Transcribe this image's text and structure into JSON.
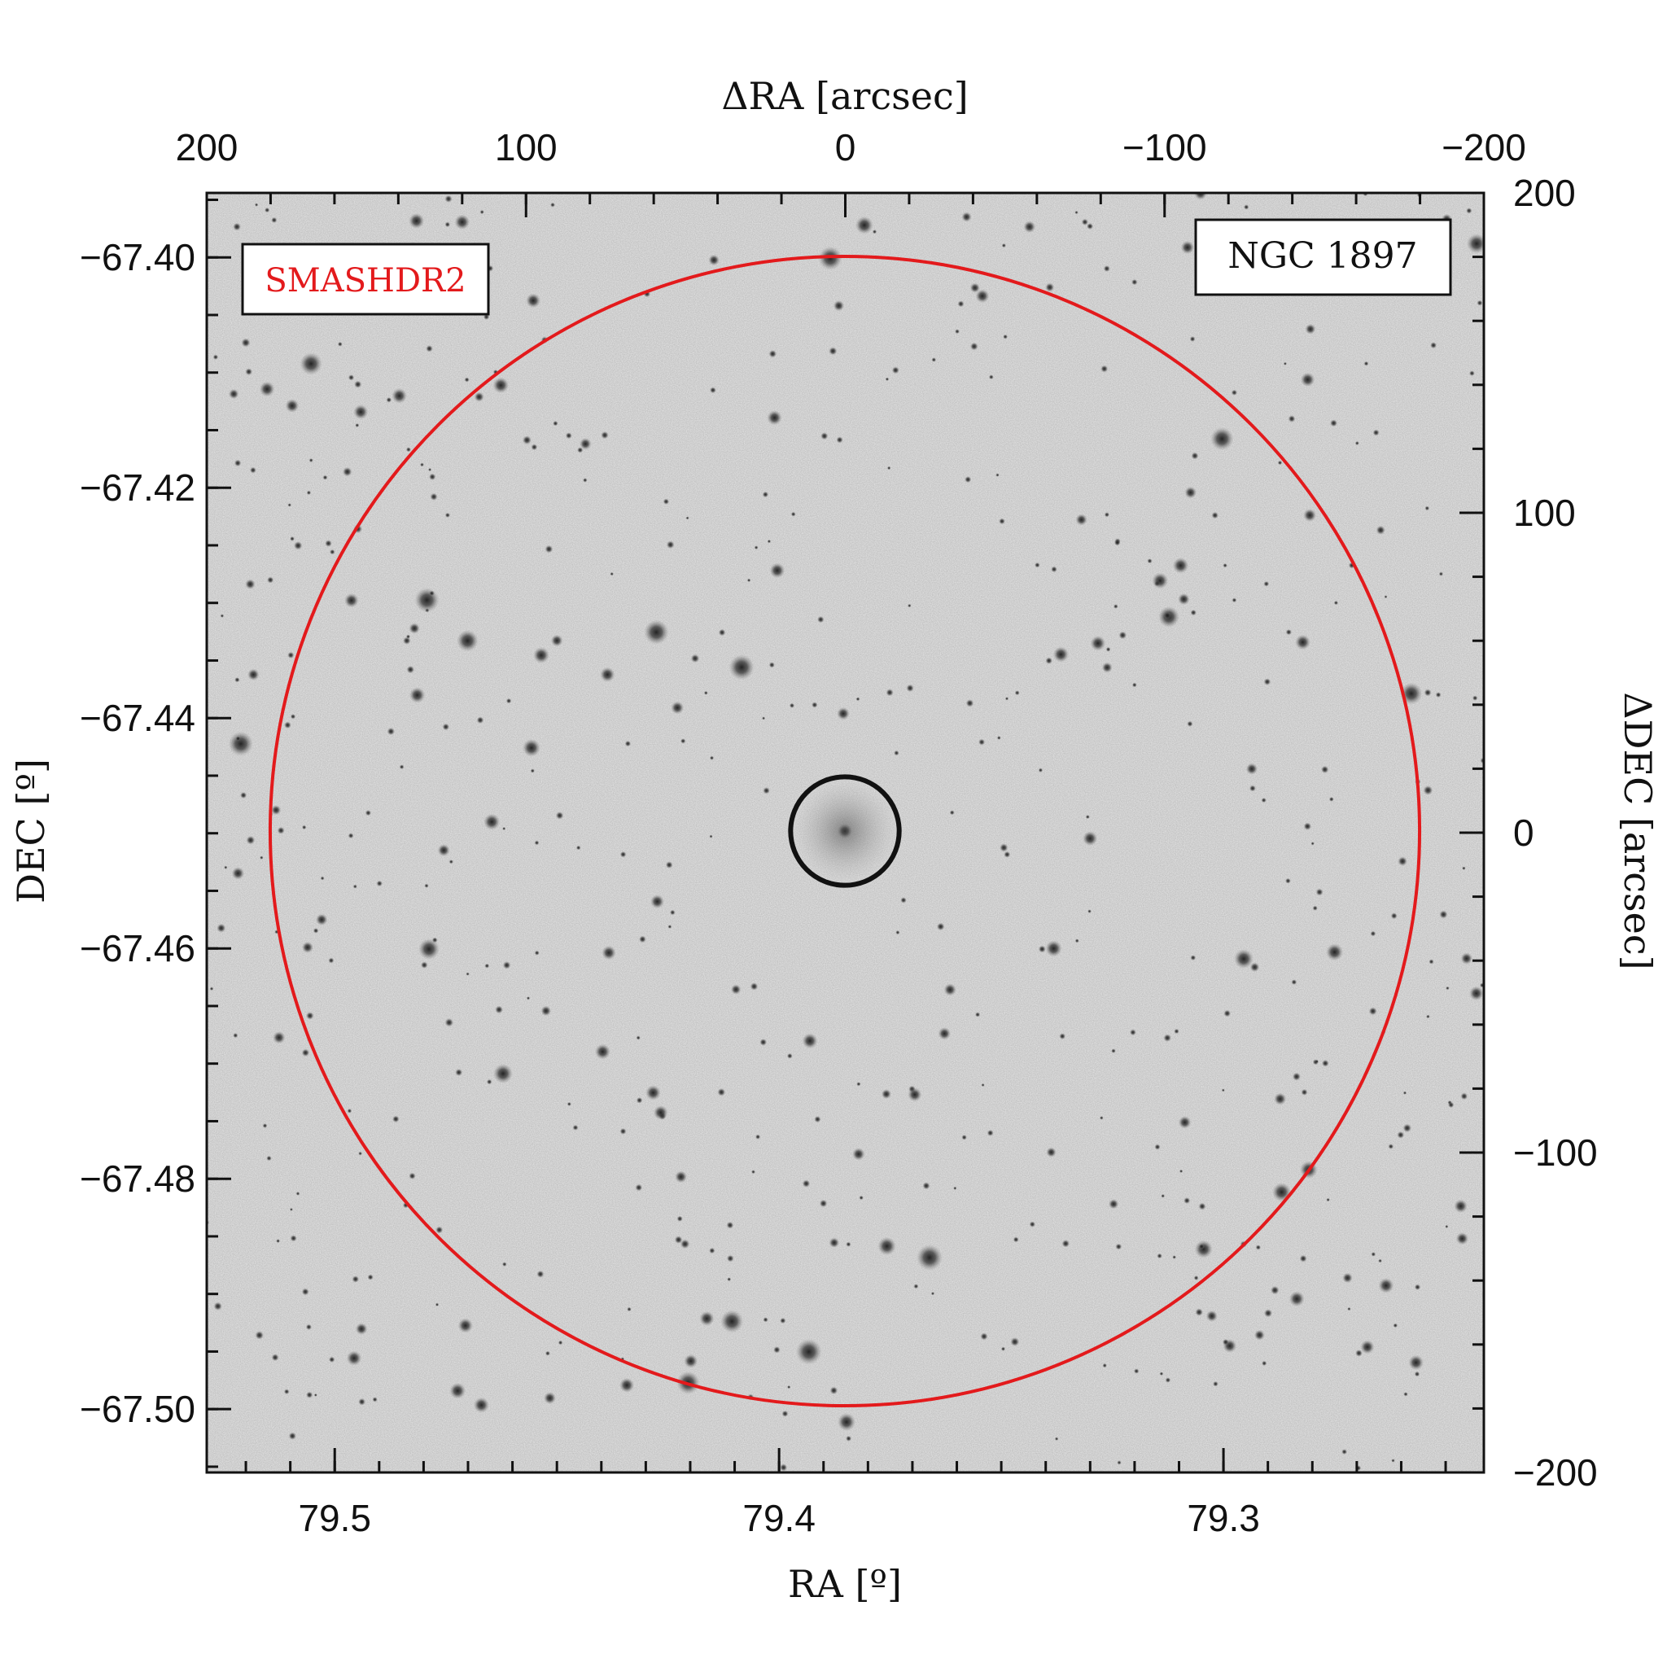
{
  "figure": {
    "survey_label": "SMASHDR2",
    "object_label": "NGC 1897",
    "survey_color": "#e31a1c",
    "aperture_color": "#e31a1c",
    "core_color": "#111111"
  },
  "axes": {
    "bottom": {
      "title": "RA [º]",
      "ticks": [
        "79.5",
        "79.4",
        "79.3"
      ],
      "values": [
        79.5,
        79.4,
        79.3
      ],
      "range": [
        79.5288,
        79.2414
      ]
    },
    "left": {
      "title": "DEC [º]",
      "ticks": [
        "−67.40",
        "−67.42",
        "−67.44",
        "−67.46",
        "−67.48",
        "−67.50"
      ],
      "values": [
        -67.4,
        -67.42,
        -67.44,
        -67.46,
        -67.48,
        -67.5
      ],
      "range": [
        -67.3944,
        -67.5055
      ]
    },
    "top": {
      "title": "ΔRA [arcsec]",
      "ticks": [
        "200",
        "100",
        "0",
        "−100",
        "−200"
      ],
      "values": [
        200,
        100,
        0,
        -100,
        -200
      ],
      "range": [
        200,
        -200
      ]
    },
    "right": {
      "title": "ΔDEC [arcsec]",
      "ticks": [
        "200",
        "100",
        "0",
        "−100",
        "−200"
      ],
      "values": [
        200,
        100,
        0,
        -100,
        -200
      ],
      "range": [
        200,
        -200
      ]
    }
  },
  "overlays": {
    "aperture_radius_arcsec": 180,
    "core_radius_arcsec": 17
  }
}
